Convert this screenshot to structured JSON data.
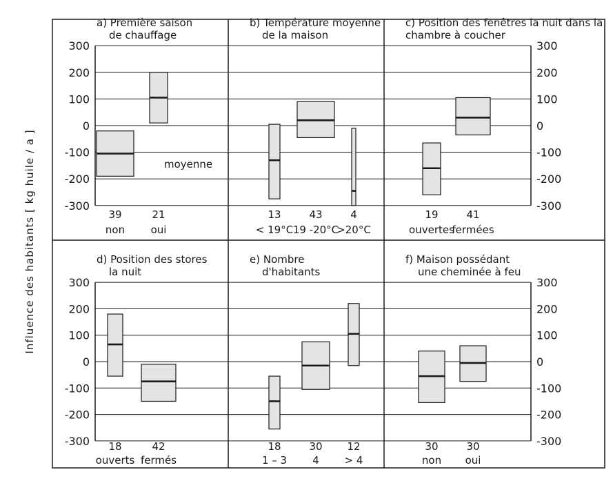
{
  "ylabel": "Influence des habitants [ kg huile / a ]",
  "y_ticks": [
    "300",
    "200",
    "100",
    "0",
    "-100",
    "-200",
    "-300"
  ],
  "legend": {
    "mean_label": "moyenne"
  },
  "colors": {
    "box_fill": "#e6e3e6",
    "line": "#1a1a1a",
    "background": "#ffffff"
  },
  "chart_data": [
    {
      "id": "a",
      "type": "box",
      "title": [
        "a) Première saison",
        "de chauffage"
      ],
      "ylim": [
        -300,
        300
      ],
      "categories": [
        {
          "count": "39",
          "label": "non",
          "min": -190,
          "max": -20,
          "mean": -105
        },
        {
          "count": "21",
          "label": "oui",
          "min": 10,
          "max": 200,
          "mean": 105
        }
      ]
    },
    {
      "id": "b",
      "type": "box",
      "title": [
        "b) Température moyenne",
        "de la maison"
      ],
      "ylim": [
        -300,
        300
      ],
      "categories": [
        {
          "count": "13",
          "label": "< 19°C",
          "min": -275,
          "max": 5,
          "mean": -130
        },
        {
          "count": "43",
          "label": "19 -20°C",
          "min": -45,
          "max": 90,
          "mean": 20
        },
        {
          "count": "4",
          "label": ">20°C",
          "min": -300,
          "max": -10,
          "mean": -245
        }
      ]
    },
    {
      "id": "c",
      "type": "box",
      "title": [
        "c) Position des fenêtres la nuit  dans la",
        "chambre à coucher"
      ],
      "ylim": [
        -300,
        300
      ],
      "categories": [
        {
          "count": "19",
          "label": "ouvertes",
          "min": -260,
          "max": -65,
          "mean": -160
        },
        {
          "count": "41",
          "label": "fermées",
          "min": -35,
          "max": 105,
          "mean": 30
        }
      ]
    },
    {
      "id": "d",
      "type": "box",
      "title": [
        "d)  Position des stores",
        "la nuit"
      ],
      "ylim": [
        -300,
        300
      ],
      "categories": [
        {
          "count": "18",
          "label": "ouverts",
          "min": -55,
          "max": 180,
          "mean": 65
        },
        {
          "count": "42",
          "label": "fermés",
          "min": -150,
          "max": -10,
          "mean": -75
        }
      ]
    },
    {
      "id": "e",
      "type": "box",
      "title": [
        "e)  Nombre",
        "d'habitants"
      ],
      "ylim": [
        -300,
        300
      ],
      "categories": [
        {
          "count": "18",
          "label": "1 – 3",
          "min": -255,
          "max": -55,
          "mean": -150
        },
        {
          "count": "30",
          "label": "4",
          "min": -105,
          "max": 75,
          "mean": -15
        },
        {
          "count": "12",
          "label": "> 4",
          "min": -15,
          "max": 220,
          "mean": 105
        }
      ]
    },
    {
      "id": "f",
      "type": "box",
      "title": [
        "f)  Maison possédant",
        "une cheminée à feu"
      ],
      "ylim": [
        -300,
        300
      ],
      "categories": [
        {
          "count": "30",
          "label": "non",
          "min": -155,
          "max": 40,
          "mean": -55
        },
        {
          "count": "30",
          "label": "oui",
          "min": -75,
          "max": 60,
          "mean": -5
        }
      ]
    }
  ]
}
